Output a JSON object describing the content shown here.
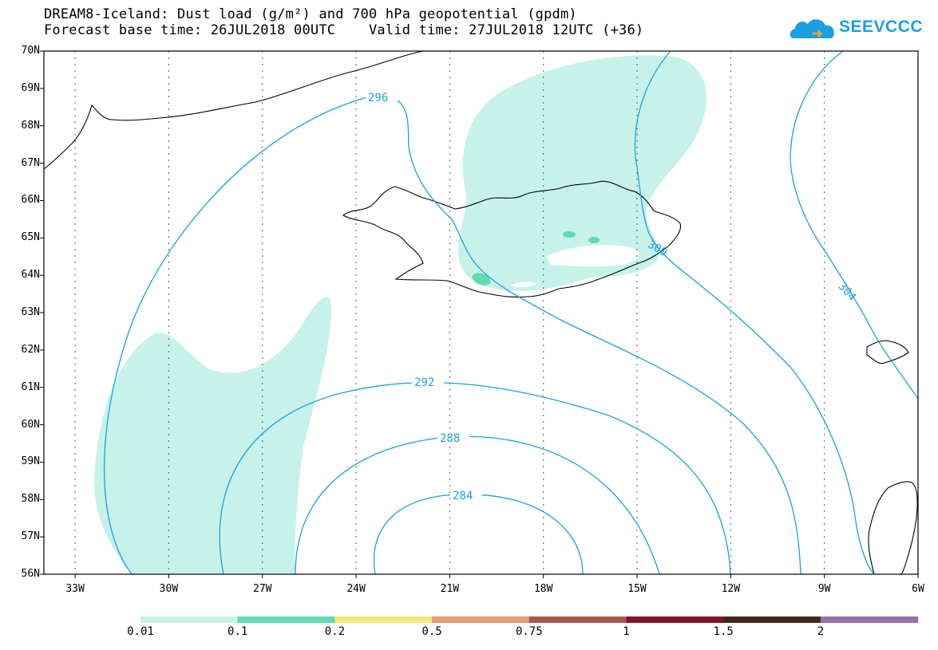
{
  "title": {
    "line1": "DREAM8-Iceland: Dust load (g/m²) and 700 hPa geopotential (gpdm)",
    "line2": "Forecast base time: 26JUL2018 00UTC    Valid time: 27JUL2018 12UTC (+36)"
  },
  "logo": {
    "text": "SEEVCCC",
    "color": "#1a9fe0"
  },
  "axes": {
    "lat_labels": [
      "70N",
      "69N",
      "68N",
      "67N",
      "66N",
      "65N",
      "64N",
      "63N",
      "62N",
      "61N",
      "60N",
      "59N",
      "58N",
      "57N",
      "56N"
    ],
    "lon_labels": [
      "33W",
      "30W",
      "27W",
      "24W",
      "21W",
      "18W",
      "15W",
      "12W",
      "9W",
      "6W"
    ],
    "lat_range": [
      56,
      70
    ],
    "lon_range": [
      -34,
      -6
    ]
  },
  "contours": {
    "color": "#1a9fe0",
    "labels": [
      "296",
      "292",
      "288",
      "284",
      "300",
      "304"
    ]
  },
  "colorbar": {
    "labels": [
      "0.01",
      "0.1",
      "0.2",
      "0.5",
      "0.75",
      "1",
      "1.5",
      "2"
    ],
    "colors": [
      "#c6f2ea",
      "#5fdcaf",
      "#f5e77a",
      "#e99b72",
      "#a65a4e",
      "#85112e",
      "#3d2a18",
      "#9471a5"
    ]
  },
  "dust_fill_colors": {
    "low": "#c6f2ea",
    "mid": "#5fdcaf"
  }
}
